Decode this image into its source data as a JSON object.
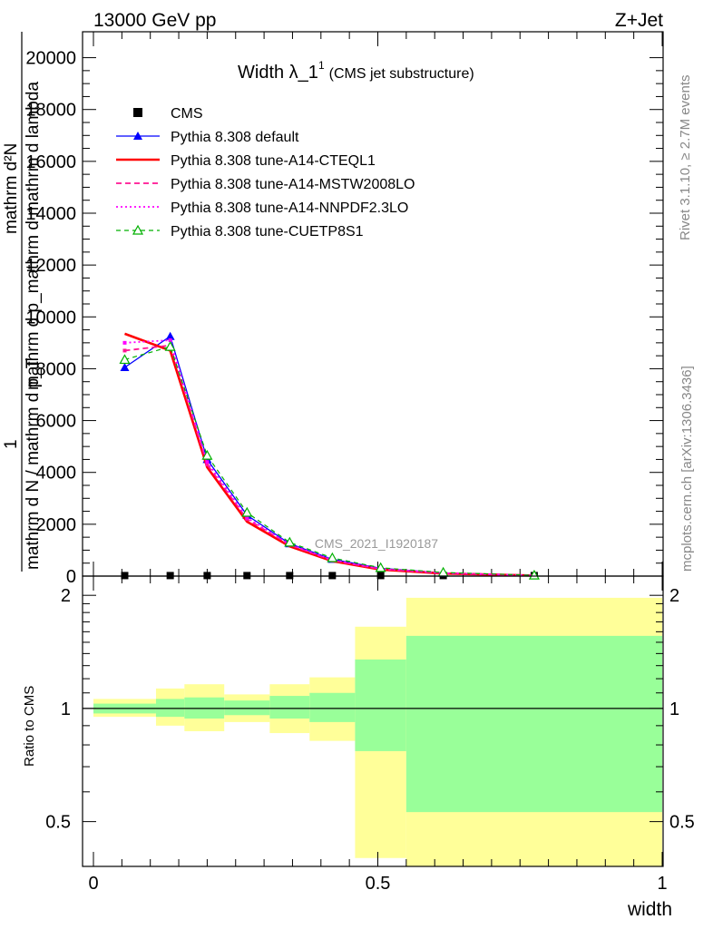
{
  "header": {
    "left": "13000 GeV pp",
    "right": "Z+Jet"
  },
  "side": {
    "rivet": "Rivet 3.1.10, ≥ 2.7M events",
    "mcplots": "mcplots.cern.ch [arXiv:1306.3436]"
  },
  "colors": {
    "cms": "#000000",
    "default": "#0000ff",
    "cteql1": "#ff0000",
    "mstw": "#ff1493",
    "nnpdf": "#ff00ff",
    "cuetp8s1": "#00b000",
    "band_inner": "#99ff99",
    "band_outer": "#ffff99"
  },
  "chart_data": [
    {
      "type": "line",
      "title_main": "Width λ_1",
      "title_sup": "1",
      "title_sub": "(CMS jet substructure)",
      "ylabel_fraction_top": "mathrm d²N",
      "ylabel_fraction_top2": "mathrm d p_mathrm d mathrm d lambda",
      "ylabel_one": "1",
      "ylabel_fraction_bottom": "mathrm d N / mathrm d p_T",
      "watermark": "CMS_2021_I1920187",
      "xlim": [
        0,
        1
      ],
      "ylim": [
        0,
        21000
      ],
      "yticks": [
        0,
        2000,
        4000,
        6000,
        8000,
        10000,
        12000,
        14000,
        16000,
        18000,
        20000
      ],
      "ytick_labels": [
        "0",
        "2000",
        "4000",
        "6000",
        "8000",
        "10000",
        "12000",
        "14000",
        "16000",
        "18000",
        "20000"
      ],
      "x": [
        0.055,
        0.135,
        0.2,
        0.27,
        0.345,
        0.42,
        0.505,
        0.615,
        0.775
      ],
      "series": [
        {
          "name": "CMS",
          "key": "cms",
          "style": "marker",
          "values": [
            20,
            20,
            20,
            20,
            20,
            20,
            20,
            20,
            20
          ]
        },
        {
          "name": "Pythia 8.308 default",
          "key": "default",
          "style": "solid-thin",
          "marker": "triangle",
          "values": [
            8050,
            9250,
            4500,
            2350,
            1250,
            650,
            300,
            120,
            30
          ]
        },
        {
          "name": "Pythia 8.308 tune-A14-CTEQL1",
          "key": "cteql1",
          "style": "solid-thick",
          "values": [
            9350,
            8700,
            4200,
            2100,
            1150,
            580,
            250,
            100,
            20
          ]
        },
        {
          "name": "Pythia 8.308 tune-A14-MSTW2008LO",
          "key": "mstw",
          "style": "dashed",
          "values": [
            8700,
            8900,
            4300,
            2200,
            1200,
            600,
            270,
            110,
            25
          ]
        },
        {
          "name": "Pythia 8.308 tune-A14-NNPDF2.3LO",
          "key": "nnpdf",
          "style": "dotted",
          "values": [
            9000,
            9100,
            4400,
            2250,
            1220,
            620,
            280,
            115,
            25
          ]
        },
        {
          "name": "Pythia 8.308 tune-CUETP8S1",
          "key": "cuetp8s1",
          "style": "dashed-open-triangle",
          "values": [
            8350,
            8850,
            4650,
            2450,
            1300,
            700,
            320,
            140,
            30
          ]
        }
      ]
    },
    {
      "type": "area",
      "ylabel": "Ratio to CMS",
      "xlabel": "width",
      "xlim": [
        0,
        1
      ],
      "ylim": [
        0.38,
        2.25
      ],
      "xticks": [
        0,
        0.5,
        1
      ],
      "xtick_labels": [
        "0",
        "0.5",
        "1"
      ],
      "yticks": [
        0.5,
        1,
        2
      ],
      "ytick_labels": [
        "0.5",
        "1",
        "2"
      ],
      "bins": [
        {
          "lo": 0.0,
          "hi": 0.11,
          "inner": [
            0.97,
            1.03
          ],
          "outer": [
            0.95,
            1.06
          ]
        },
        {
          "lo": 0.11,
          "hi": 0.16,
          "inner": [
            0.95,
            1.06
          ],
          "outer": [
            0.9,
            1.13
          ]
        },
        {
          "lo": 0.16,
          "hi": 0.23,
          "inner": [
            0.94,
            1.07
          ],
          "outer": [
            0.87,
            1.16
          ]
        },
        {
          "lo": 0.23,
          "hi": 0.31,
          "inner": [
            0.96,
            1.05
          ],
          "outer": [
            0.92,
            1.09
          ]
        },
        {
          "lo": 0.31,
          "hi": 0.38,
          "inner": [
            0.94,
            1.08
          ],
          "outer": [
            0.86,
            1.16
          ]
        },
        {
          "lo": 0.38,
          "hi": 0.46,
          "inner": [
            0.92,
            1.1
          ],
          "outer": [
            0.82,
            1.21
          ]
        },
        {
          "lo": 0.46,
          "hi": 0.55,
          "inner": [
            0.77,
            1.35
          ],
          "outer": [
            0.4,
            1.65
          ]
        },
        {
          "lo": 0.55,
          "hi": 1.0,
          "inner": [
            0.53,
            1.56
          ],
          "outer": [
            0.3,
            1.97
          ]
        }
      ]
    }
  ]
}
